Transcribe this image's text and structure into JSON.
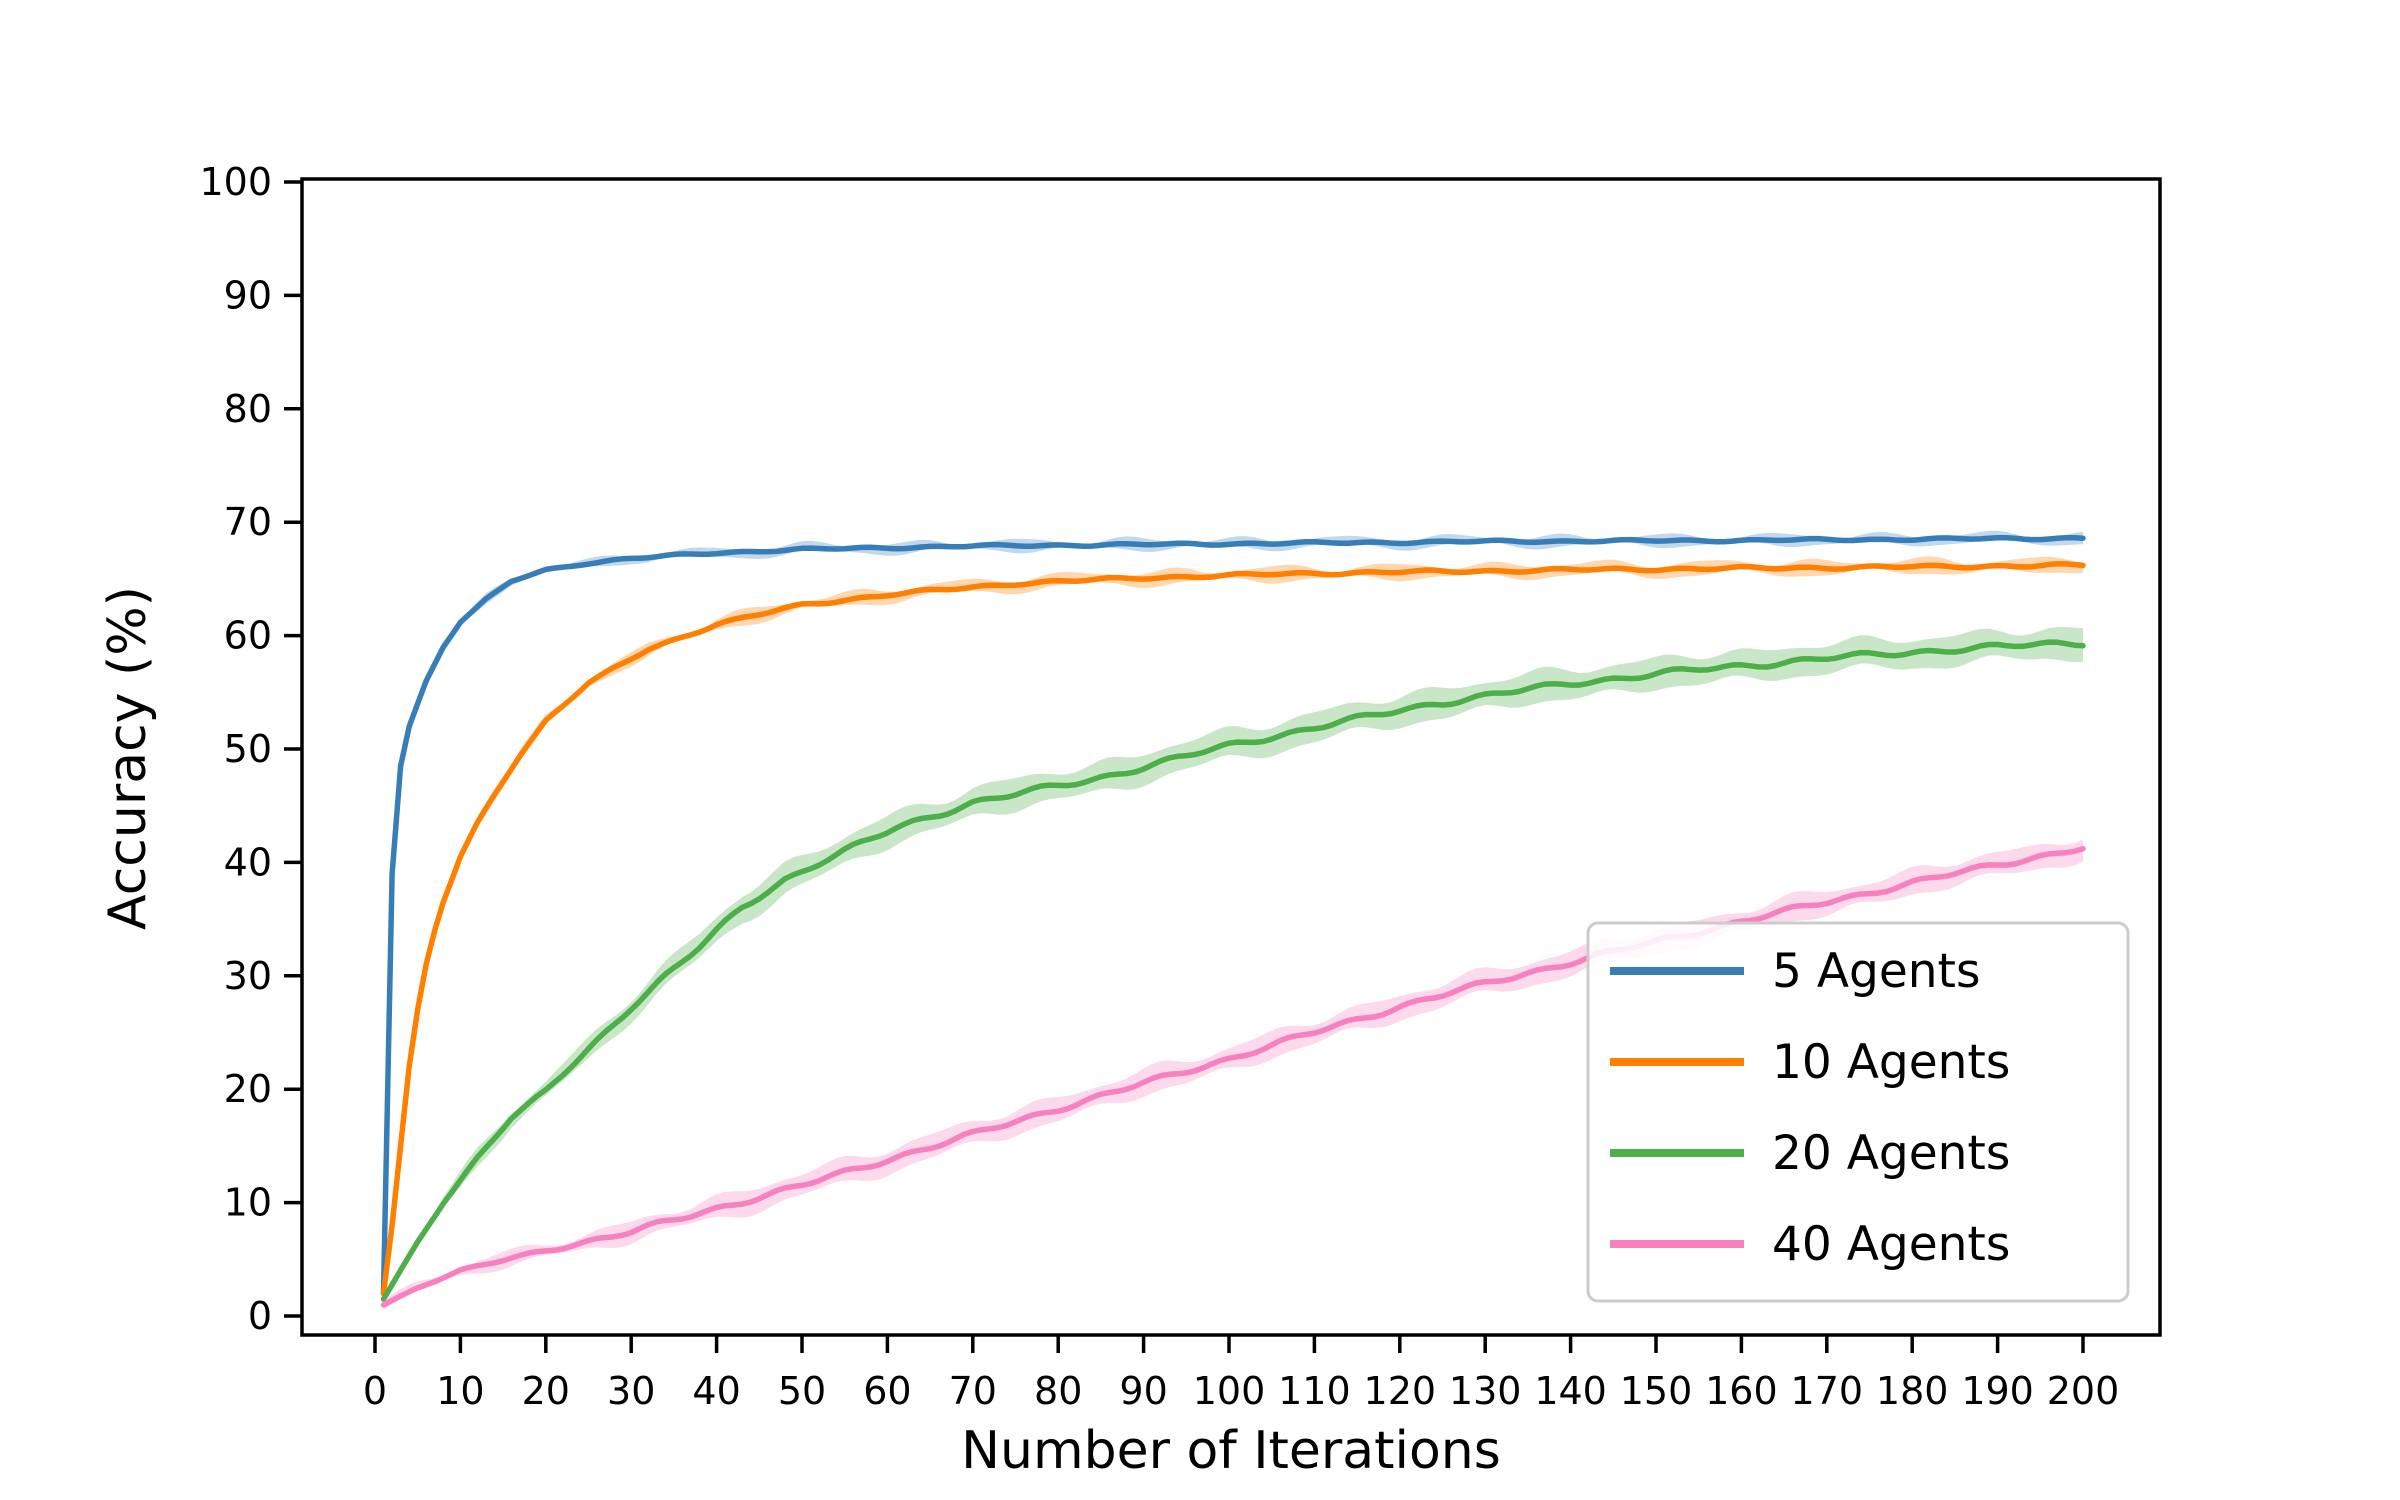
{
  "chart_data": {
    "type": "line",
    "title": "",
    "xlabel": "Number of Iterations",
    "ylabel": "Accuracy (%)",
    "xlim": [
      -9,
      208.5
    ],
    "ylim": [
      -1.7,
      100.3
    ],
    "x_ticks": [
      0,
      10,
      20,
      30,
      40,
      50,
      60,
      70,
      80,
      90,
      100,
      110,
      120,
      130,
      140,
      150,
      160,
      170,
      180,
      190,
      200
    ],
    "y_ticks": [
      0,
      10,
      20,
      30,
      40,
      50,
      60,
      70,
      80,
      90,
      100
    ],
    "grid": false,
    "legend_position": "lower right",
    "series": [
      {
        "name": "5 Agents",
        "color": "#377eb8",
        "band_halfwidth": 0.35,
        "noise_amp": 0.12,
        "points": [
          [
            1,
            2
          ],
          [
            1.5,
            30
          ],
          [
            2,
            39
          ],
          [
            2.5,
            45
          ],
          [
            3,
            48.5
          ],
          [
            4,
            52
          ],
          [
            5,
            54
          ],
          [
            6,
            56
          ],
          [
            7,
            57.5
          ],
          [
            8,
            59
          ],
          [
            10,
            61.2
          ],
          [
            13,
            63.2
          ],
          [
            16,
            64.8
          ],
          [
            20,
            65.8
          ],
          [
            25,
            66.4
          ],
          [
            30,
            66.8
          ],
          [
            40,
            67.3
          ],
          [
            50,
            67.6
          ],
          [
            70,
            67.9
          ],
          [
            100,
            68.1
          ],
          [
            130,
            68.3
          ],
          [
            160,
            68.4
          ],
          [
            200,
            68.6
          ]
        ]
      },
      {
        "name": "10 Agents",
        "color": "#ff7f00",
        "band_halfwidth": 0.5,
        "noise_amp": 0.16,
        "points": [
          [
            1,
            2
          ],
          [
            2,
            8
          ],
          [
            3,
            15
          ],
          [
            4,
            22
          ],
          [
            5,
            27
          ],
          [
            6,
            31
          ],
          [
            7,
            34
          ],
          [
            8,
            36.5
          ],
          [
            10,
            40.5
          ],
          [
            12,
            43.5
          ],
          [
            14,
            46
          ],
          [
            17,
            49.5
          ],
          [
            20,
            52.5
          ],
          [
            25,
            55.8
          ],
          [
            32,
            58.8
          ],
          [
            40,
            61
          ],
          [
            50,
            62.7
          ],
          [
            60,
            63.6
          ],
          [
            75,
            64.6
          ],
          [
            90,
            65.1
          ],
          [
            110,
            65.5
          ],
          [
            140,
            65.8
          ],
          [
            170,
            66
          ],
          [
            200,
            66.2
          ]
        ]
      },
      {
        "name": "20 Agents",
        "color": "#4daf4a",
        "band_halfwidth": 1.25,
        "noise_amp": 0.3,
        "points": [
          [
            1,
            1.5
          ],
          [
            3,
            4
          ],
          [
            5,
            6.5
          ],
          [
            8,
            10
          ],
          [
            12,
            14
          ],
          [
            16,
            17.5
          ],
          [
            20,
            19.8
          ],
          [
            25,
            23.5
          ],
          [
            30,
            27.3
          ],
          [
            34,
            30
          ],
          [
            38,
            32.5
          ],
          [
            43,
            36
          ],
          [
            48,
            38.5
          ],
          [
            52,
            40
          ],
          [
            61,
            43
          ],
          [
            70,
            45.3
          ],
          [
            84,
            47.3
          ],
          [
            100,
            50.3
          ],
          [
            112,
            52.2
          ],
          [
            124,
            54
          ],
          [
            140,
            55.8
          ],
          [
            155,
            57
          ],
          [
            170,
            58
          ],
          [
            185,
            58.8
          ],
          [
            200,
            59.4
          ]
        ]
      },
      {
        "name": "40 Agents",
        "color": "#f781bf",
        "band_halfwidth": 1.0,
        "noise_amp": 0.28,
        "points": [
          [
            1,
            1
          ],
          [
            5,
            2.5
          ],
          [
            10,
            4
          ],
          [
            20,
            5.8
          ],
          [
            30,
            7.4
          ],
          [
            40,
            9.5
          ],
          [
            50,
            11.5
          ],
          [
            60,
            13.8
          ],
          [
            70,
            16
          ],
          [
            80,
            18.3
          ],
          [
            90,
            20.5
          ],
          [
            100,
            22.7
          ],
          [
            110,
            25
          ],
          [
            120,
            27.3
          ],
          [
            130,
            29.3
          ],
          [
            140,
            31.2
          ],
          [
            150,
            33
          ],
          [
            160,
            34.8
          ],
          [
            170,
            36.5
          ],
          [
            180,
            38.2
          ],
          [
            190,
            39.8
          ],
          [
            200,
            41.3
          ]
        ]
      }
    ]
  },
  "colors": {
    "background": "#ffffff",
    "axis": "#000000",
    "text": "#000000",
    "legend_border": "#cccccc",
    "legend_fill": "#ffffff"
  }
}
